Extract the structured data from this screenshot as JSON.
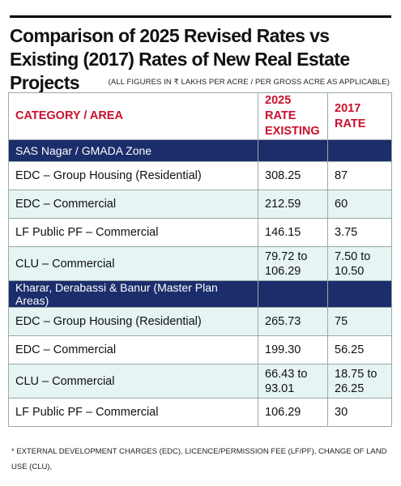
{
  "title": "Comparison of 2025 Revised Rates vs Existing (2017) Rates of New Real Estate Projects",
  "subtitle": "(ALL FIGURES IN ₹ LAKHS PER ACRE / PER GROSS ACRE AS APPLICABLE)",
  "table": {
    "headers": [
      "CATEGORY / AREA",
      "2025 RATE EXISTING",
      "2017 RATE"
    ],
    "sections": [
      {
        "name": "SAS Nagar / GMADA Zone",
        "rows": [
          [
            "EDC – Group Housing (Residential)",
            "308.25",
            "87"
          ],
          [
            "EDC – Commercial",
            "212.59",
            "60"
          ],
          [
            "LF Public PF – Commercial",
            "146.15",
            "3.75"
          ],
          [
            "CLU – Commercial",
            "79.72 to 106.29",
            "7.50 to 10.50"
          ]
        ]
      },
      {
        "name": "Kharar, Derabassi & Banur (Master Plan Areas)",
        "rows": [
          [
            "EDC – Group Housing (Residential)",
            "265.73",
            "75"
          ],
          [
            "EDC – Commercial",
            "199.30",
            "56.25"
          ],
          [
            "CLU – Commercial",
            "66.43 to 93.01",
            "18.75 to 26.25"
          ],
          [
            "LF Public PF – Commercial",
            "106.29",
            "30"
          ]
        ]
      }
    ]
  },
  "footnote": "* EXTERNAL DEVELOPMENT CHARGES (EDC), LICENCE/PERMISSION FEE (LF/PF), CHANGE OF LAND USE (CLU),",
  "colors": {
    "header_text": "#c8102e",
    "section_bg": "#1b2d6b",
    "alt_row_bg": "#e6f4f3"
  }
}
